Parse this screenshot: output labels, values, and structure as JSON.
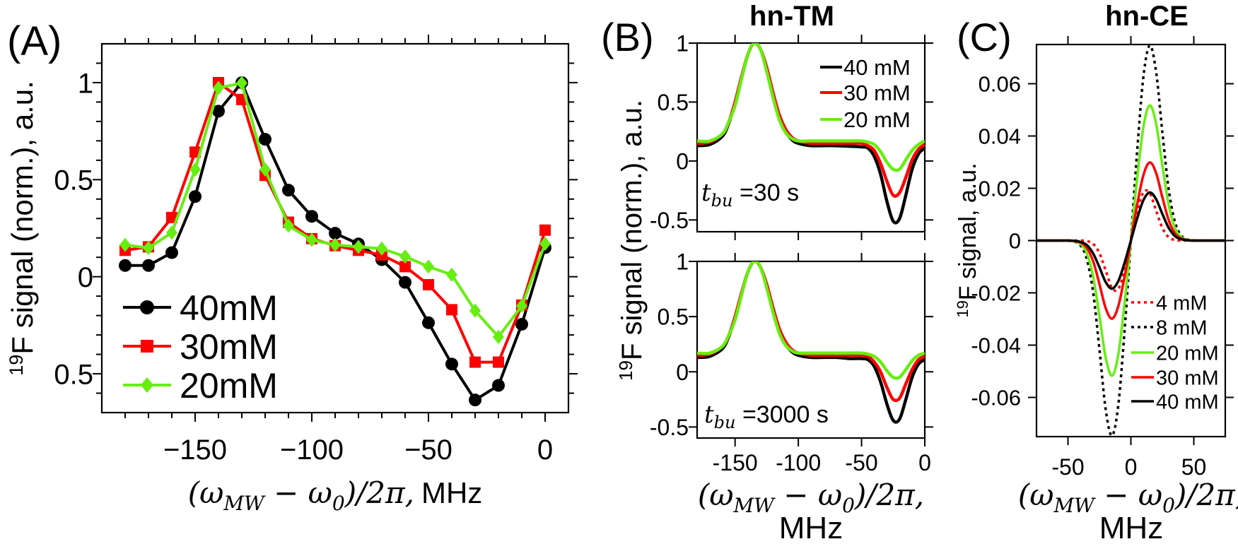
{
  "colors": {
    "c40": "#000000",
    "c30": "#ff0000",
    "c20": "#66ee11",
    "c8": "#000000",
    "c4": "#ff0000"
  },
  "panels": {
    "A": {
      "letter": "(A)"
    },
    "B": {
      "letter": "(B)",
      "title": "hn-TM"
    },
    "C": {
      "letter": "(C)",
      "title": "hn-CE"
    }
  },
  "labels": {
    "ylabel_norm": {
      "sup": "19",
      "text": "F signal (norm.), a.u."
    },
    "ylabel_c": {
      "sup": "19",
      "text": "F signal, a.u."
    },
    "xlabel": {
      "open": "(ω",
      "sub1": "MW",
      "mid": " − ω",
      "sub2": "0",
      "close": ")/2π,",
      "unit": "MHz"
    },
    "tbu_top": {
      "var": "t",
      "sub": "bu",
      "text": " =30 s"
    },
    "tbu_bottom": {
      "var": "t",
      "sub": "bu",
      "text": " =3000 s"
    }
  },
  "chart_data": [
    {
      "panel": "A",
      "type": "line",
      "xlabel": "(ω_MW − ω_0)/2π, MHz",
      "ylabel": "19F signal (norm.), a.u.",
      "xlim": [
        -190,
        10
      ],
      "ylim": [
        -0.7,
        1.2
      ],
      "xticks": [
        -150,
        -100,
        -50,
        0
      ],
      "xticklabels": [
        "−150",
        "−100",
        "−50",
        "0"
      ],
      "yticks": [
        1,
        0.5,
        0,
        -0.5
      ],
      "yticklabels": [
        "1",
        "0.5",
        "0",
        "0.5"
      ],
      "legend": "bottom-left",
      "x": [
        -180,
        -170,
        -160,
        -150,
        -140,
        -130,
        -120,
        -110,
        -100,
        -90,
        -80,
        -70,
        -60,
        -50,
        -40,
        -30,
        -20,
        -10,
        0
      ],
      "series": [
        {
          "name": "40mM",
          "color": "#000000",
          "marker": "circle",
          "values": [
            0.058,
            0.058,
            0.124,
            0.413,
            0.853,
            1.0,
            0.708,
            0.446,
            0.311,
            0.224,
            0.169,
            0.088,
            -0.029,
            -0.237,
            -0.45,
            -0.635,
            -0.56,
            -0.245,
            0.15
          ]
        },
        {
          "name": "30mM",
          "color": "#ff0000",
          "marker": "square",
          "values": [
            0.136,
            0.154,
            0.305,
            0.642,
            1.0,
            0.913,
            0.522,
            0.281,
            0.196,
            0.16,
            0.136,
            0.112,
            0.052,
            -0.041,
            -0.17,
            -0.44,
            -0.44,
            -0.146,
            0.24
          ]
        },
        {
          "name": "20mM",
          "color": "#66ee11",
          "marker": "diamond",
          "values": [
            0.164,
            0.148,
            0.227,
            0.552,
            0.973,
            0.998,
            0.552,
            0.263,
            0.19,
            0.164,
            0.154,
            0.145,
            0.104,
            0.052,
            0.01,
            -0.175,
            -0.31,
            -0.15,
            0.17
          ]
        }
      ]
    },
    {
      "panel": "B-top",
      "type": "line",
      "title": "hn-TM",
      "annotation": "t_bu =30 s",
      "xlim": [
        -180,
        0
      ],
      "ylim": [
        -0.6,
        1
      ],
      "xticks": [
        -150,
        -100,
        -50,
        0
      ],
      "yticks": [
        1,
        0.5,
        0,
        -0.5
      ],
      "yticklabels": [
        "1",
        "0.5",
        "0",
        "-0.5"
      ],
      "legend": "top-right",
      "x": [
        -180,
        -170,
        -160,
        -155,
        -150,
        -145,
        -140,
        -135,
        -130,
        -125,
        -120,
        -115,
        -110,
        -105,
        -100,
        -90,
        -80,
        -70,
        -60,
        -50,
        -45,
        -40,
        -35,
        -30,
        -25,
        -20,
        -15,
        -10,
        -5,
        0
      ],
      "series": [
        {
          "name": "40 mM",
          "color": "#000000",
          "values": [
            0.13,
            0.14,
            0.21,
            0.32,
            0.49,
            0.7,
            0.9,
            1.0,
            0.95,
            0.79,
            0.57,
            0.38,
            0.25,
            0.18,
            0.15,
            0.13,
            0.13,
            0.13,
            0.125,
            0.12,
            0.11,
            0.04,
            -0.11,
            -0.34,
            -0.51,
            -0.49,
            -0.29,
            -0.07,
            0.06,
            0.11
          ]
        },
        {
          "name": "30 mM",
          "color": "#ff0000",
          "values": [
            0.15,
            0.16,
            0.23,
            0.33,
            0.5,
            0.71,
            0.9,
            1.0,
            0.95,
            0.79,
            0.58,
            0.39,
            0.27,
            0.2,
            0.17,
            0.15,
            0.15,
            0.15,
            0.15,
            0.15,
            0.13,
            0.09,
            -0.02,
            -0.17,
            -0.29,
            -0.27,
            -0.14,
            0.01,
            0.1,
            0.14
          ]
        },
        {
          "name": "20 mM",
          "color": "#66ee11",
          "values": [
            0.17,
            0.17,
            0.23,
            0.33,
            0.47,
            0.69,
            0.9,
            1.0,
            0.95,
            0.76,
            0.54,
            0.35,
            0.24,
            0.19,
            0.17,
            0.17,
            0.17,
            0.17,
            0.17,
            0.17,
            0.16,
            0.14,
            0.08,
            -0.01,
            -0.07,
            -0.07,
            0.01,
            0.09,
            0.14,
            0.17
          ]
        }
      ]
    },
    {
      "panel": "B-bottom",
      "type": "line",
      "annotation": "t_bu =3000 s",
      "xlabel": "(ω_MW − ω_0)/2π, MHz",
      "xlim": [
        -180,
        0
      ],
      "ylim": [
        -0.6,
        1
      ],
      "xticks": [
        -150,
        -100,
        -50,
        0
      ],
      "xticklabels": [
        "-150",
        "-100",
        "-50",
        "0"
      ],
      "yticks": [
        1,
        0.5,
        0,
        -0.5
      ],
      "yticklabels": [
        "1",
        "0.5",
        "0",
        "-0.5"
      ],
      "x": [
        -180,
        -170,
        -160,
        -155,
        -150,
        -145,
        -140,
        -135,
        -130,
        -125,
        -120,
        -115,
        -110,
        -105,
        -100,
        -90,
        -80,
        -70,
        -60,
        -50,
        -45,
        -40,
        -35,
        -30,
        -25,
        -20,
        -15,
        -10,
        -5,
        0
      ],
      "series": [
        {
          "color": "#000000",
          "values": [
            0.13,
            0.14,
            0.21,
            0.32,
            0.49,
            0.7,
            0.9,
            1.0,
            0.95,
            0.79,
            0.57,
            0.38,
            0.25,
            0.18,
            0.15,
            0.13,
            0.13,
            0.13,
            0.12,
            0.12,
            0.11,
            0.05,
            -0.09,
            -0.29,
            -0.44,
            -0.43,
            -0.25,
            -0.05,
            0.07,
            0.11
          ]
        },
        {
          "color": "#ff0000",
          "values": [
            0.15,
            0.16,
            0.23,
            0.33,
            0.5,
            0.71,
            0.9,
            1.0,
            0.95,
            0.79,
            0.58,
            0.39,
            0.27,
            0.2,
            0.17,
            0.15,
            0.15,
            0.15,
            0.15,
            0.15,
            0.14,
            0.09,
            0.0,
            -0.14,
            -0.25,
            -0.24,
            -0.11,
            0.02,
            0.11,
            0.14
          ]
        },
        {
          "color": "#66ee11",
          "values": [
            0.17,
            0.17,
            0.23,
            0.33,
            0.47,
            0.69,
            0.9,
            1.0,
            0.95,
            0.76,
            0.54,
            0.35,
            0.24,
            0.19,
            0.17,
            0.17,
            0.17,
            0.17,
            0.17,
            0.17,
            0.16,
            0.14,
            0.09,
            0.01,
            -0.05,
            -0.05,
            0.02,
            0.1,
            0.15,
            0.17
          ]
        }
      ]
    },
    {
      "panel": "C",
      "type": "line",
      "title": "hn-CE",
      "xlabel": "(ω_MW − ω_0)/2π, MHz",
      "ylabel": "19F signal, a.u.",
      "xlim": [
        -75,
        75
      ],
      "ylim": [
        -0.075,
        0.075
      ],
      "xticks": [
        -50,
        0,
        50
      ],
      "xticklabels": [
        "-50",
        "0",
        "50"
      ],
      "yticks": [
        0.06,
        0.04,
        0.02,
        0,
        -0.02,
        -0.04,
        -0.06
      ],
      "yticklabels": [
        "0.06",
        "0.04",
        "0.02",
        "0",
        "-0.02",
        "-0.04",
        "-0.06"
      ],
      "legend": "bottom-right",
      "x": [
        -75,
        -70,
        -65,
        -60,
        -55,
        -50,
        -45,
        -40,
        -35,
        -30,
        -25,
        -20,
        -15,
        -10,
        -5,
        0,
        5,
        10,
        15,
        20,
        25,
        30,
        35,
        40,
        45,
        50,
        55,
        60,
        65,
        70,
        75
      ],
      "series": [
        {
          "name": "4 mM",
          "color": "#ff0000",
          "style": "dotted",
          "values": [
            0,
            0,
            0,
            0,
            0,
            0,
            0,
            0,
            -0.0002,
            -0.0013,
            -0.0048,
            -0.0115,
            -0.0181,
            -0.0185,
            -0.0112,
            0,
            0.0112,
            0.0185,
            0.0181,
            0.0115,
            0.0048,
            0.0013,
            0.0002,
            0,
            0,
            0,
            0,
            0,
            0,
            0,
            0
          ]
        },
        {
          "name": "8 mM",
          "color": "#000000",
          "style": "dotted",
          "values": [
            0,
            0,
            0,
            0,
            0,
            -0.0001,
            -0.0004,
            -0.0019,
            -0.0071,
            -0.0198,
            -0.0415,
            -0.0647,
            -0.0746,
            -0.0629,
            -0.0344,
            0,
            0.0344,
            0.0629,
            0.0746,
            0.0647,
            0.0415,
            0.0198,
            0.0071,
            0.0019,
            0.0004,
            0.0001,
            0,
            0,
            0,
            0,
            0
          ]
        },
        {
          "name": "20 mM",
          "color": "#66ee11",
          "style": "solid",
          "values": [
            0,
            0,
            0,
            0,
            0,
            0,
            -0.0003,
            -0.0013,
            -0.0049,
            -0.0137,
            -0.0288,
            -0.0448,
            -0.0517,
            -0.0436,
            -0.0239,
            0,
            0.0239,
            0.0436,
            0.0517,
            0.0448,
            0.0288,
            0.0137,
            0.0049,
            0.0013,
            0.0003,
            0,
            0,
            0,
            0,
            0,
            0
          ]
        },
        {
          "name": "30 mM",
          "color": "#ff0000",
          "style": "solid",
          "values": [
            0,
            0,
            0,
            0,
            0,
            0,
            -0.0002,
            -0.0008,
            -0.0028,
            -0.0079,
            -0.0166,
            -0.0259,
            -0.0299,
            -0.0251,
            -0.0138,
            0,
            0.0138,
            0.0251,
            0.0299,
            0.0259,
            0.0166,
            0.0079,
            0.0028,
            0.0008,
            0.0002,
            0,
            0,
            0,
            0,
            0,
            0
          ]
        },
        {
          "name": "40 mM",
          "color": "#000000",
          "style": "solid",
          "values": [
            0,
            0,
            0,
            0,
            0,
            0,
            -0.0001,
            -0.0005,
            -0.0017,
            -0.0049,
            -0.0102,
            -0.0159,
            -0.0184,
            -0.0155,
            -0.0085,
            0,
            0.0085,
            0.0155,
            0.0184,
            0.0159,
            0.0102,
            0.0049,
            0.0017,
            0.0005,
            0.0001,
            0,
            0,
            0,
            0,
            0,
            0
          ]
        }
      ]
    }
  ]
}
